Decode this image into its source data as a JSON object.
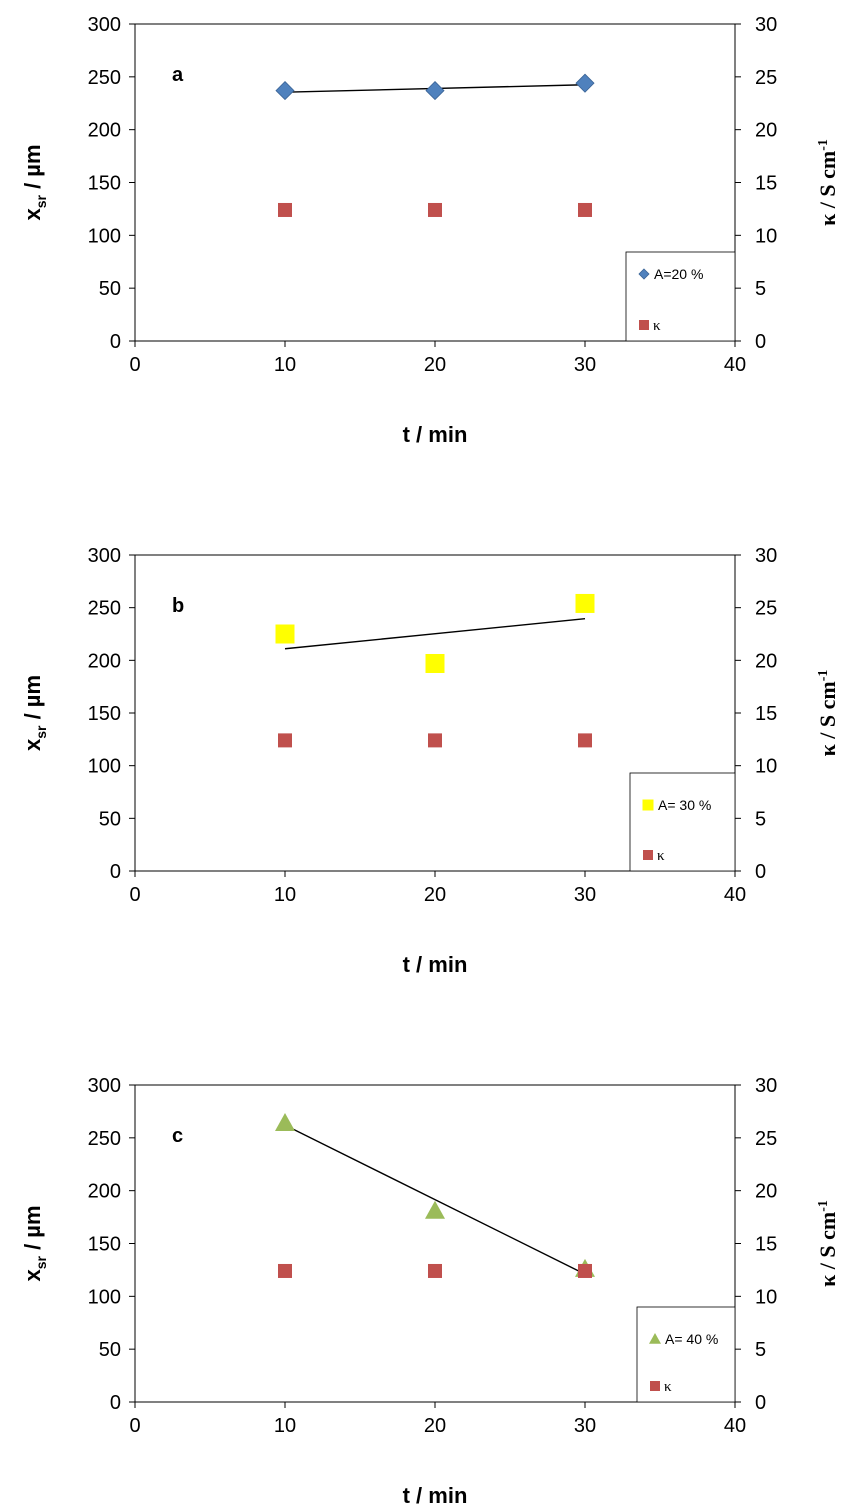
{
  "chart_data": [
    {
      "type": "scatter",
      "panel_label": "a",
      "xlabel": "t / min",
      "ylabel_left": {
        "main": "x",
        "sub": "sr",
        "rest": " / µm"
      },
      "ylabel_right": {
        "main": "κ / S cm",
        "sup": "-1"
      },
      "xlim": [
        0,
        40
      ],
      "xticks": [
        0,
        10,
        20,
        30,
        40
      ],
      "ylim_left": [
        0,
        300
      ],
      "yticks_left": [
        0,
        50,
        100,
        150,
        200,
        250,
        300
      ],
      "ylim_right": [
        0,
        30
      ],
      "yticks_right": [
        0,
        5,
        10,
        15,
        20,
        25,
        30
      ],
      "series": [
        {
          "name": "A=20 %",
          "axis": "left",
          "marker": "diamond",
          "color": "#4F81BD",
          "x": [
            10,
            20,
            30
          ],
          "y": [
            237,
            237,
            244
          ],
          "trendline": {
            "x": [
              10,
              30
            ],
            "y": [
              235.5,
              242.5
            ]
          }
        },
        {
          "name": "κ",
          "axis": "right",
          "marker": "square",
          "color": "#C0504D",
          "x": [
            10,
            20,
            30
          ],
          "y": [
            12.4,
            12.4,
            12.4
          ]
        }
      ],
      "legend": "bottom-right"
    },
    {
      "type": "scatter",
      "panel_label": "b",
      "xlabel": "t / min",
      "ylabel_left": {
        "main": "x",
        "sub": "sr",
        "rest": " / µm"
      },
      "ylabel_right": {
        "main": "κ / S cm",
        "sup": "-1"
      },
      "xlim": [
        0,
        40
      ],
      "xticks": [
        0,
        10,
        20,
        30,
        40
      ],
      "ylim_left": [
        0,
        300
      ],
      "yticks_left": [
        0,
        50,
        100,
        150,
        200,
        250,
        300
      ],
      "ylim_right": [
        0,
        30
      ],
      "yticks_right": [
        0,
        5,
        10,
        15,
        20,
        25,
        30
      ],
      "series": [
        {
          "name": "A= 30 %",
          "axis": "left",
          "marker": "square-large",
          "color": "#FFFF00",
          "x": [
            10,
            20,
            30
          ],
          "y": [
            225,
            197,
            254
          ],
          "trendline": {
            "x": [
              10,
              30
            ],
            "y": [
              211,
              239.5
            ]
          }
        },
        {
          "name": "κ",
          "axis": "right",
          "marker": "square",
          "color": "#C0504D",
          "x": [
            10,
            20,
            30
          ],
          "y": [
            12.4,
            12.4,
            12.4
          ]
        }
      ],
      "legend": "bottom-right"
    },
    {
      "type": "scatter",
      "panel_label": "c",
      "xlabel": "t / min",
      "ylabel_left": {
        "main": "x",
        "sub": "sr",
        "rest": " / µm"
      },
      "ylabel_right": {
        "main": "κ / S cm",
        "sup": "-1"
      },
      "xlim": [
        0,
        40
      ],
      "xticks": [
        0,
        10,
        20,
        30,
        40
      ],
      "ylim_left": [
        0,
        300
      ],
      "yticks_left": [
        0,
        50,
        100,
        150,
        200,
        250,
        300
      ],
      "ylim_right": [
        0,
        30
      ],
      "yticks_right": [
        0,
        5,
        10,
        15,
        20,
        25,
        30
      ],
      "series": [
        {
          "name": "A= 40 %",
          "axis": "left",
          "marker": "triangle",
          "color": "#9BBB59",
          "x": [
            10,
            20,
            30
          ],
          "y": [
            264,
            181,
            126
          ],
          "trendline": {
            "x": [
              10,
              30
            ],
            "y": [
              262,
              121
            ]
          }
        },
        {
          "name": "κ",
          "axis": "right",
          "marker": "square",
          "color": "#C0504D",
          "x": [
            10,
            20,
            30
          ],
          "y": [
            12.4,
            12.4,
            12.4
          ]
        }
      ],
      "legend": "bottom-right"
    }
  ]
}
